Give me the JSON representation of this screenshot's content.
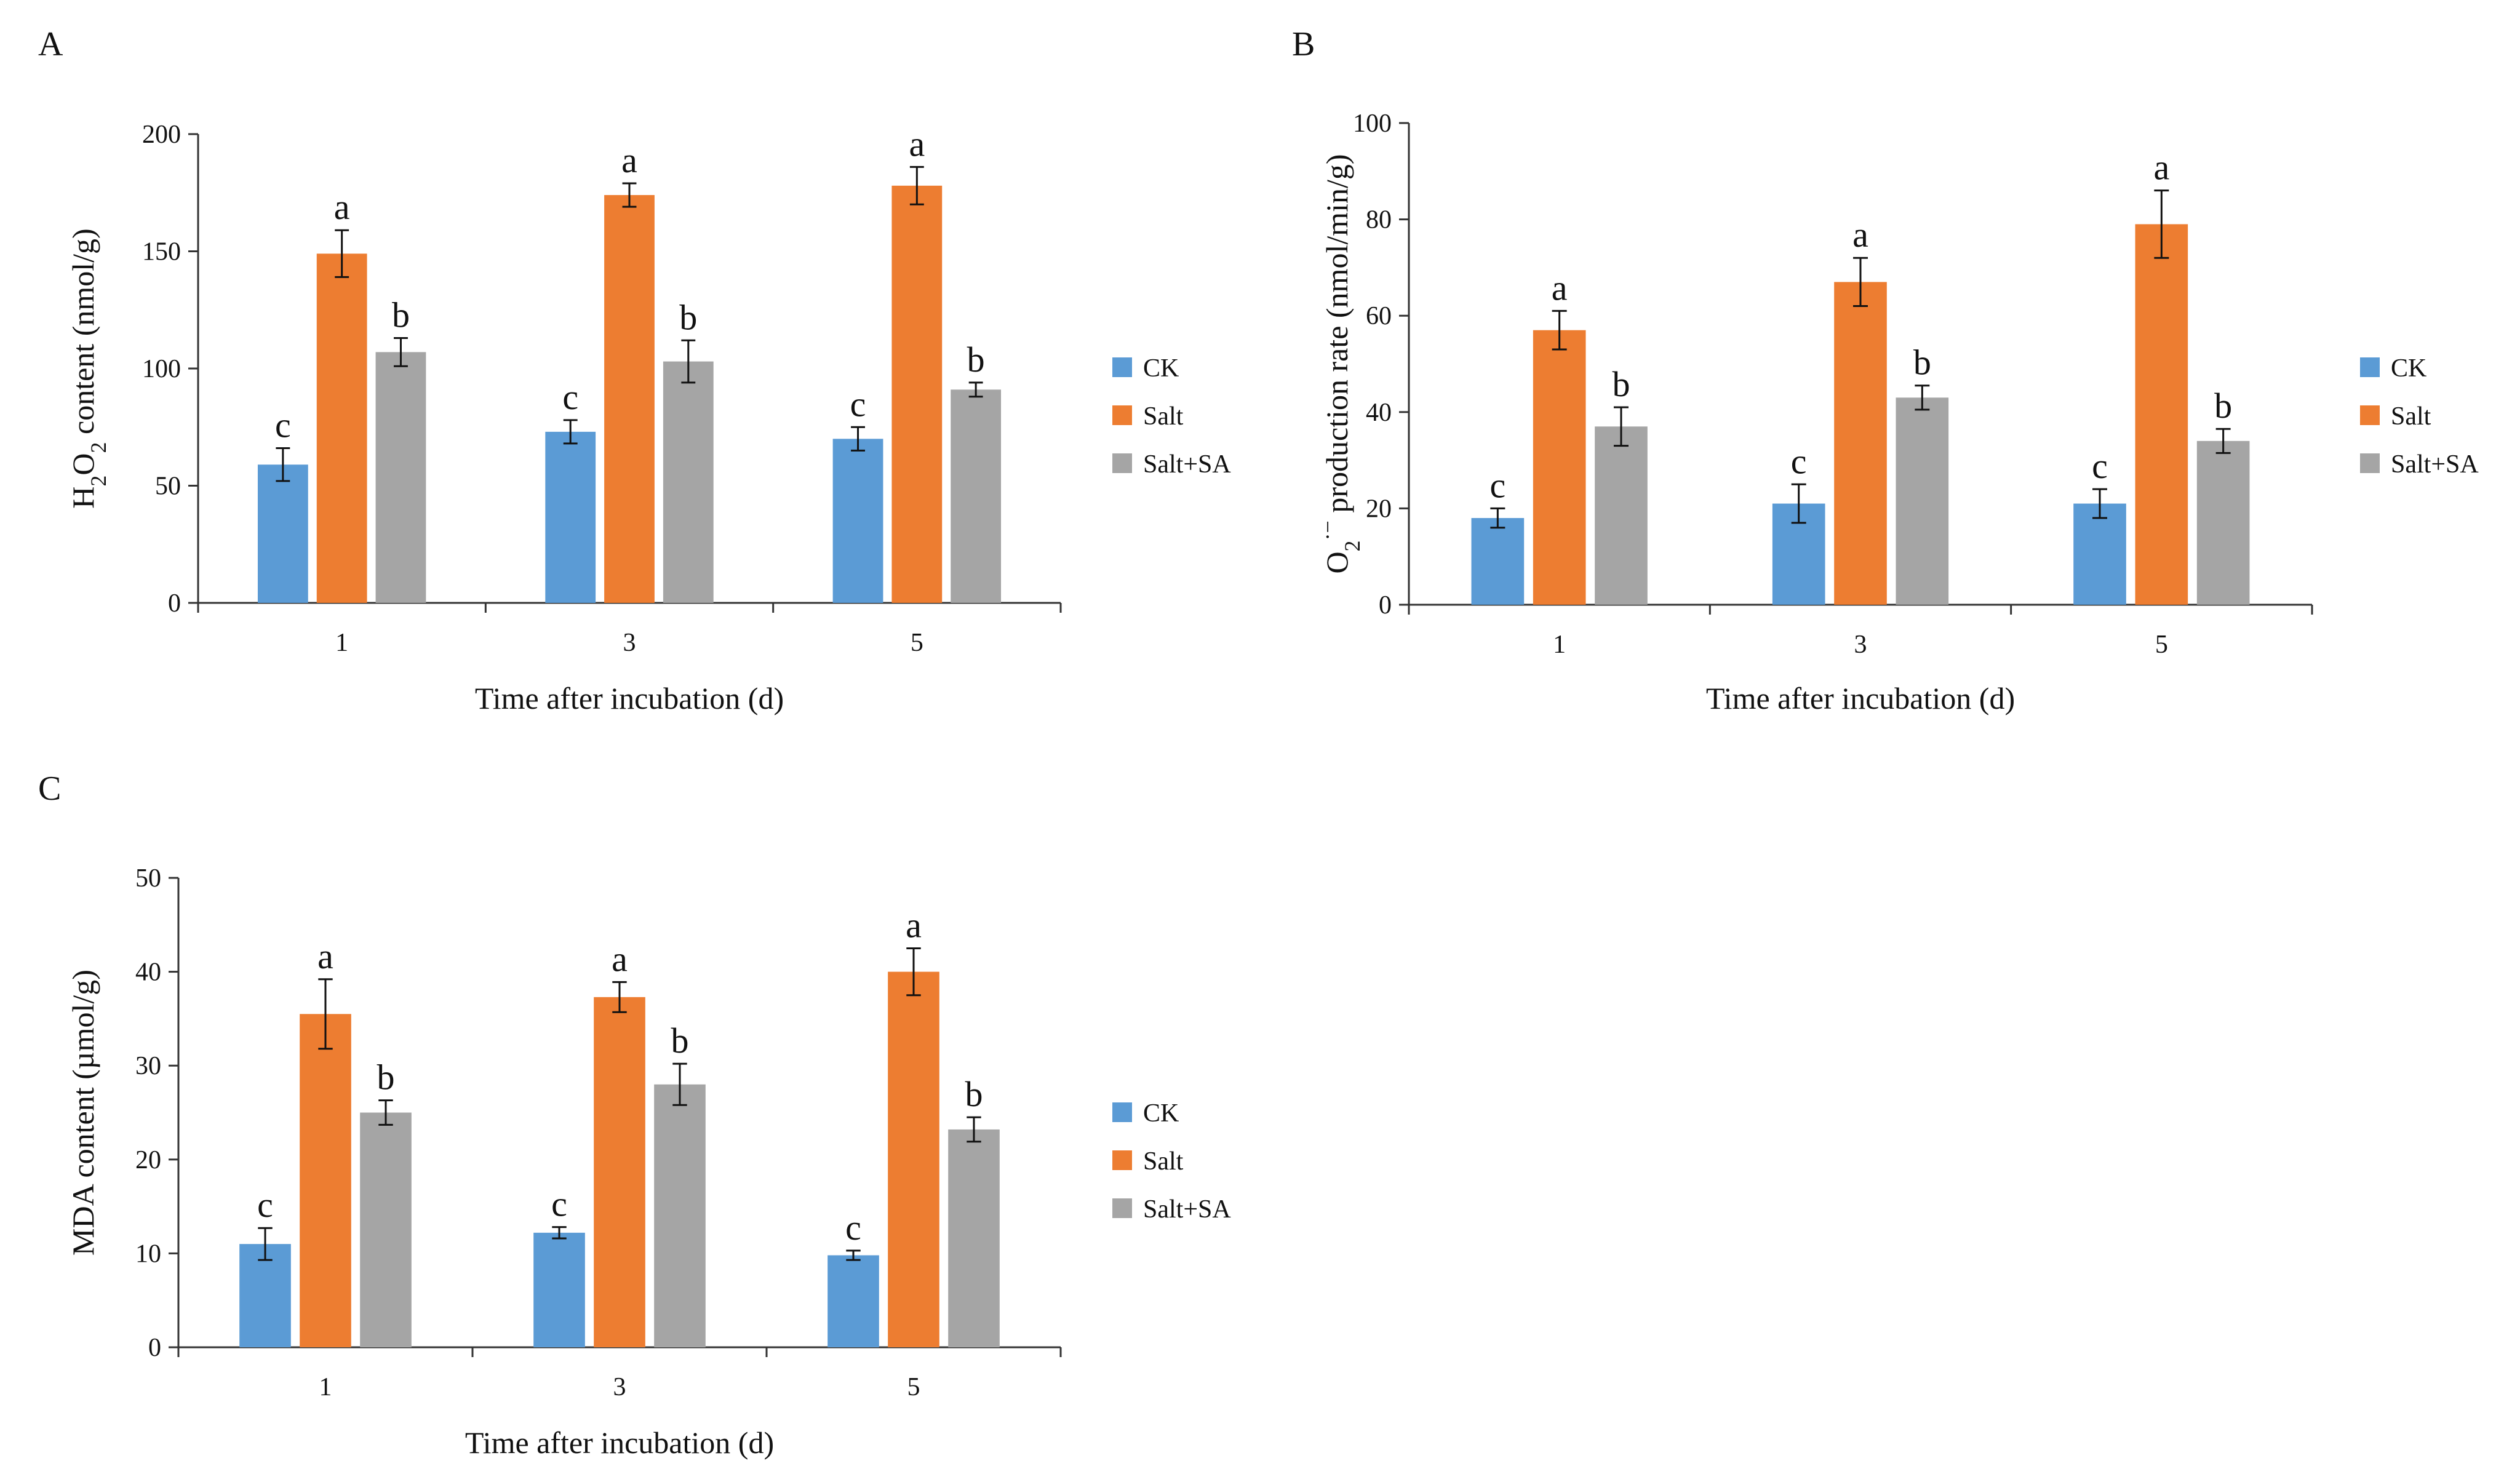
{
  "colors": {
    "CK": "#5b9bd5",
    "Salt": "#ed7d31",
    "Salt+SA": "#a5a5a5",
    "axis": "#333333",
    "text": "#111111"
  },
  "legend": [
    "CK",
    "Salt",
    "Salt+SA"
  ],
  "chart_data": [
    {
      "panel": "A",
      "type": "bar",
      "categories": [
        "1",
        "3",
        "5"
      ],
      "xlabel": "Time after incubation (d)",
      "ylabel": {
        "prefix": "H",
        "sub": "2",
        "mid": "O",
        "sub2": "2",
        "suffix": " content (nmol/g)"
      },
      "ylim": [
        0,
        200
      ],
      "yticks": [
        0,
        50,
        100,
        150,
        200
      ],
      "series": [
        {
          "name": "CK",
          "values": [
            59,
            73,
            70
          ],
          "errors": [
            7,
            5,
            5
          ],
          "letters": [
            "c",
            "c",
            "c"
          ]
        },
        {
          "name": "Salt",
          "values": [
            149,
            174,
            178
          ],
          "errors": [
            10,
            5,
            8
          ],
          "letters": [
            "a",
            "a",
            "a"
          ]
        },
        {
          "name": "Salt+SA",
          "values": [
            107,
            103,
            91
          ],
          "errors": [
            6,
            9,
            3
          ],
          "letters": [
            "b",
            "b",
            "b"
          ]
        }
      ]
    },
    {
      "panel": "B",
      "type": "bar",
      "categories": [
        "1",
        "3",
        "5"
      ],
      "xlabel": "Time after incubation (d)",
      "ylabel": {
        "prefix": "O",
        "sub": "2",
        "sup": "·−",
        "suffix": " production rate (nmol/min/g)"
      },
      "ylim": [
        0,
        100
      ],
      "yticks": [
        0,
        20,
        40,
        60,
        80,
        100
      ],
      "series": [
        {
          "name": "CK",
          "values": [
            18,
            21,
            21
          ],
          "errors": [
            2,
            4,
            3
          ],
          "letters": [
            "c",
            "c",
            "c"
          ]
        },
        {
          "name": "Salt",
          "values": [
            57,
            67,
            79
          ],
          "errors": [
            4,
            5,
            7
          ],
          "letters": [
            "a",
            "a",
            "a"
          ]
        },
        {
          "name": "Salt+SA",
          "values": [
            37,
            43,
            34
          ],
          "errors": [
            4,
            2.5,
            2.5
          ],
          "letters": [
            "b",
            "b",
            "b"
          ]
        }
      ]
    },
    {
      "panel": "C",
      "type": "bar",
      "categories": [
        "1",
        "3",
        "5"
      ],
      "xlabel": "Time after incubation (d)",
      "ylabel": {
        "prefix": "MDA content (µmol/g)"
      },
      "ylim": [
        0,
        50
      ],
      "yticks": [
        0,
        10,
        20,
        30,
        40,
        50
      ],
      "series": [
        {
          "name": "CK",
          "values": [
            11,
            12.2,
            9.8
          ],
          "errors": [
            1.7,
            0.6,
            0.5
          ],
          "letters": [
            "c",
            "c",
            "c"
          ]
        },
        {
          "name": "Salt",
          "values": [
            35.5,
            37.3,
            40
          ],
          "errors": [
            3.7,
            1.6,
            2.5
          ],
          "letters": [
            "a",
            "a",
            "a"
          ]
        },
        {
          "name": "Salt+SA",
          "values": [
            25,
            28,
            23.2
          ],
          "errors": [
            1.3,
            2.2,
            1.3
          ],
          "letters": [
            "b",
            "b",
            "b"
          ]
        }
      ]
    }
  ]
}
